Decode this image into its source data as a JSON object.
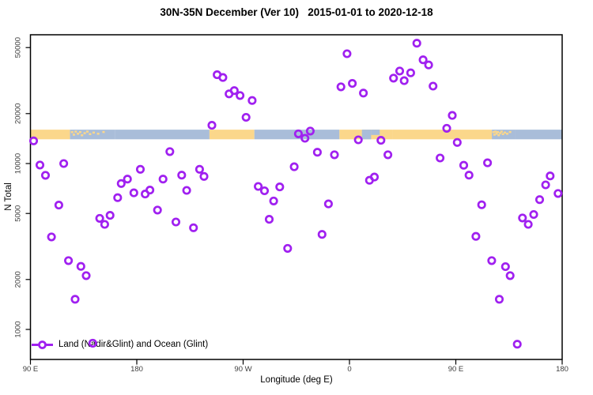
{
  "chart_data": {
    "type": "scatter",
    "title": "30N-35N December (Ver 10)   2015-01-01 to 2020-12-18",
    "xlabel": "Longitude (deg E)",
    "ylabel": "N Total",
    "legend": {
      "label": "Land (Nadir&Glint) and Ocean (Glint)",
      "position": "bottom-left",
      "marker": "open-circle-on-line"
    },
    "x_axis": {
      "range_deg": [
        90,
        540
      ],
      "ticks": [
        {
          "deg": 90,
          "label": "90 E"
        },
        {
          "deg": 180,
          "label": "180"
        },
        {
          "deg": 270,
          "label": "90 W"
        },
        {
          "deg": 360,
          "label": "0"
        },
        {
          "deg": 450,
          "label": "90 E"
        },
        {
          "deg": 540,
          "label": "180"
        }
      ]
    },
    "y_axis": {
      "scale": "log",
      "range": [
        660,
        59000
      ],
      "ticks": [
        {
          "value": 1000,
          "label": "1000"
        },
        {
          "value": 2000,
          "label": "2000"
        },
        {
          "value": 5000,
          "label": "5000"
        },
        {
          "value": 10000,
          "label": "10000"
        },
        {
          "value": 20000,
          "label": "20000"
        },
        {
          "value": 50000,
          "label": "50000"
        }
      ]
    },
    "map_band": {
      "n_range": [
        14000,
        16000
      ],
      "segments": [
        {
          "from": 90,
          "to": 123.5,
          "type": "land"
        },
        {
          "from": 123.5,
          "to": 161.5,
          "type": "islands"
        },
        {
          "from": 161.5,
          "to": 241.5,
          "type": "ocean"
        },
        {
          "from": 241.5,
          "to": 279.5,
          "type": "land"
        },
        {
          "from": 279.5,
          "to": 351.5,
          "type": "ocean"
        },
        {
          "from": 351.5,
          "to": 370.5,
          "type": "land"
        },
        {
          "from": 370.5,
          "to": 396.5,
          "type": "mixed-coast"
        },
        {
          "from": 396.5,
          "to": 480.5,
          "type": "land"
        },
        {
          "from": 480.5,
          "to": 500.5,
          "type": "islands"
        },
        {
          "from": 500.5,
          "to": 540,
          "type": "ocean"
        }
      ]
    },
    "points": [
      [
        92.7,
        13700
      ],
      [
        98,
        9790
      ],
      [
        102.7,
        8490
      ],
      [
        107.8,
        3610
      ],
      [
        114,
        5620
      ],
      [
        118.2,
        10000
      ],
      [
        122.2,
        2600
      ],
      [
        127.8,
        1520
      ],
      [
        132.7,
        2400
      ],
      [
        137.2,
        2110
      ],
      [
        142.7,
        826
      ],
      [
        148.6,
        4670
      ],
      [
        152.8,
        4300
      ],
      [
        157.4,
        4870
      ],
      [
        163.8,
        6230
      ],
      [
        166.8,
        7580
      ],
      [
        172.1,
        8060
      ],
      [
        177.5,
        6660
      ],
      [
        183,
        9230
      ],
      [
        187.1,
        6550
      ],
      [
        191.1,
        6920
      ],
      [
        197.5,
        5240
      ],
      [
        202.2,
        8060
      ],
      [
        208,
        11800
      ],
      [
        213.1,
        4440
      ],
      [
        218,
        8510
      ],
      [
        222.2,
        6890
      ],
      [
        228,
        4100
      ],
      [
        233.1,
        9230
      ],
      [
        236.9,
        8360
      ],
      [
        243.6,
        17000
      ],
      [
        248,
        34300
      ],
      [
        252.9,
        33000
      ],
      [
        258.1,
        26300
      ],
      [
        262.5,
        27500
      ],
      [
        267.4,
        25700
      ],
      [
        272.5,
        19000
      ],
      [
        277.6,
        24000
      ],
      [
        282.8,
        7280
      ],
      [
        288.1,
        6850
      ],
      [
        292.1,
        4610
      ],
      [
        295.8,
        5950
      ],
      [
        301,
        7230
      ],
      [
        307.7,
        3080
      ],
      [
        313.2,
        9560
      ],
      [
        316.8,
        15100
      ],
      [
        322.3,
        14200
      ],
      [
        326.8,
        15700
      ],
      [
        332.8,
        11700
      ],
      [
        336.8,
        3740
      ],
      [
        342.2,
        5710
      ],
      [
        347.3,
        11300
      ],
      [
        352.8,
        29000
      ],
      [
        357.9,
        45900
      ],
      [
        362.4,
        30400
      ],
      [
        367.5,
        13900
      ],
      [
        371.8,
        26600
      ],
      [
        376.9,
        7930
      ],
      [
        381.1,
        8290
      ],
      [
        386.6,
        13800
      ],
      [
        392.5,
        11300
      ],
      [
        397.3,
        32700
      ],
      [
        402.5,
        36100
      ],
      [
        406.3,
        31600
      ],
      [
        411.8,
        35200
      ],
      [
        417,
        53100
      ],
      [
        422.3,
        42200
      ],
      [
        427,
        39300
      ],
      [
        430.7,
        29300
      ],
      [
        436.7,
        10800
      ],
      [
        442.3,
        16300
      ],
      [
        447,
        19500
      ],
      [
        451.2,
        13400
      ],
      [
        456.7,
        9760
      ],
      [
        461.2,
        8510
      ],
      [
        467,
        3640
      ],
      [
        471.9,
        5640
      ],
      [
        476.8,
        10100
      ],
      [
        480.4,
        2600
      ],
      [
        486.8,
        1520
      ],
      [
        492,
        2390
      ],
      [
        496,
        2110
      ],
      [
        502,
        815
      ],
      [
        506.4,
        4700
      ],
      [
        511.3,
        4300
      ],
      [
        515.9,
        4930
      ],
      [
        520.9,
        6060
      ],
      [
        526,
        7440
      ],
      [
        529.8,
        8420
      ],
      [
        536.5,
        6600
      ]
    ]
  },
  "colors": {
    "point": "#A020F0",
    "land": "#FBD78B",
    "ocean": "#A9BDD9",
    "frame": "#000000",
    "tick_text": "#404040"
  }
}
